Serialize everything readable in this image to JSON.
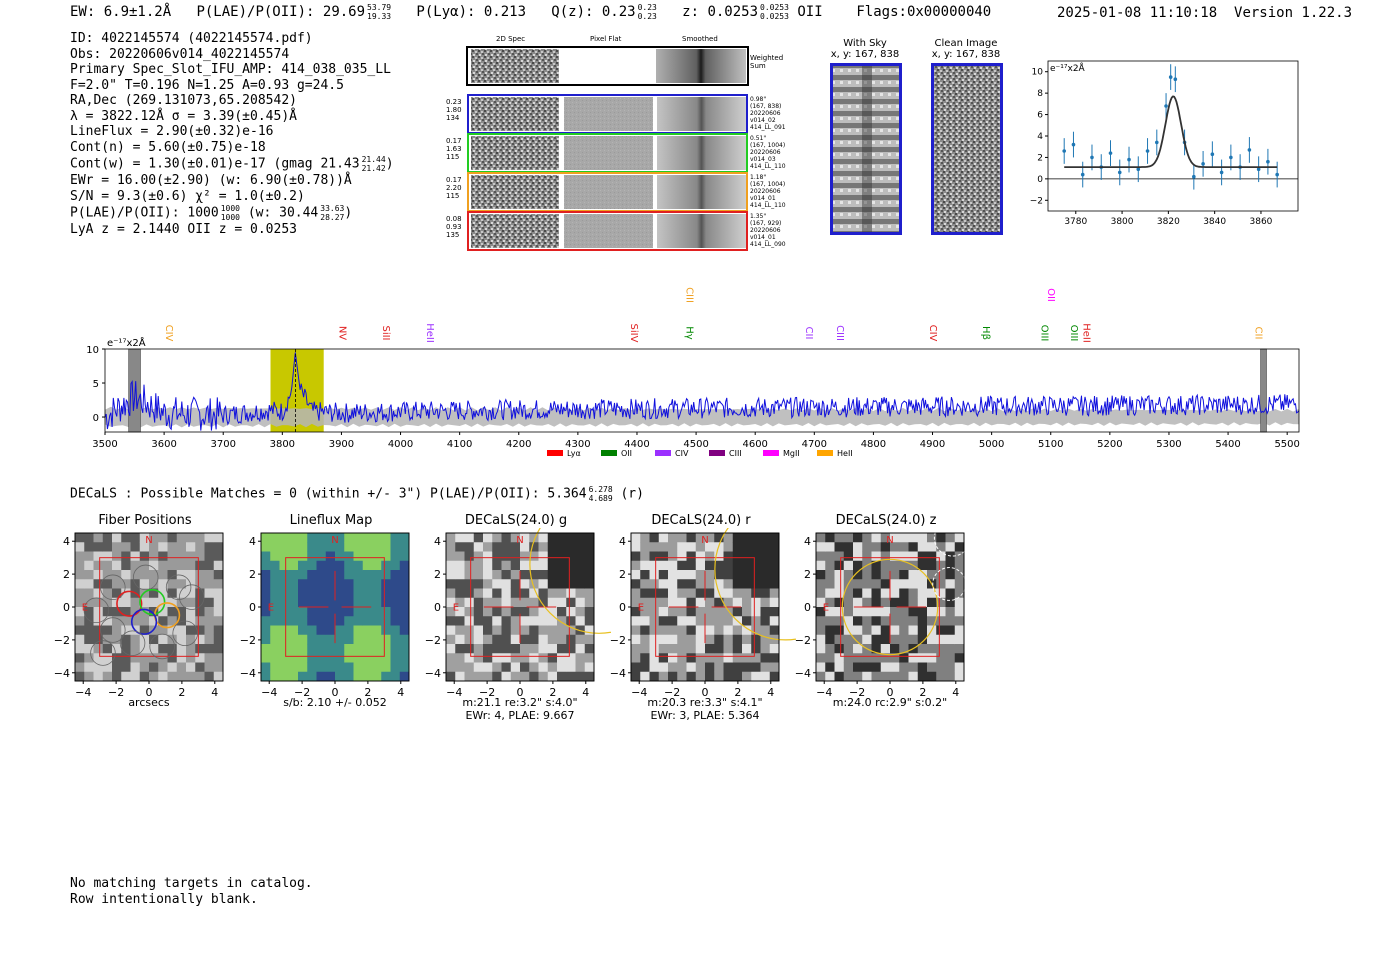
{
  "header": {
    "ew": "EW: 6.9±1.2Å",
    "plae_label": "P(LAE)/P(OII): 29.69",
    "plae_hi": "53.79",
    "plae_lo": "19.33",
    "plya": "P(Lyα): 0.213",
    "q_label": "Q(z): 0.23",
    "q_hi": "0.23",
    "q_lo": "0.23",
    "z_label": "z: 0.0253",
    "z_hi": "0.0253",
    "z_lo": "0.0253",
    "z_line": "OII",
    "flags": "Flags:0x00000040",
    "datetime": "2025-01-08 11:10:18",
    "version": "Version 1.22.3"
  },
  "info": {
    "l1": "ID: 4022145574 (4022145574.pdf)",
    "l2": "Obs: 20220606v014_4022145574",
    "l3": "Primary Spec_Slot_IFU_AMP: 414_038_035_LL",
    "l4": "F=2.0\"  T=0.196  N=1.25  A=0.93  g=24.5",
    "l5": "RA,Dec (269.131073,65.208542)",
    "l6": "λ = 3822.12Å  σ = 3.39(±0.45)Å",
    "l7": "LineFlux = 2.90(±0.32)e-16",
    "l8": "Cont(n) = 5.60(±0.75)e-18",
    "l9": "Cont(w) = 1.30(±0.01)e-17 (gmag 21.43",
    "l9_hi": "21.44",
    "l9_lo": "21.42",
    "l9_end": ")",
    "l10": "EWr = 16.00(±2.90) (w: 6.90(±0.78))Å",
    "l11": "S/N = 9.3(±0.6)  χ² = 1.0(±0.2)",
    "l12": "P(LAE)/P(OII): 1000",
    "l12_hi": "1000",
    "l12_lo": "1000",
    "l12_mid": "(w: 30.44",
    "l12_hi2": "33.63",
    "l12_lo2": "28.27",
    "l12_end": ")",
    "l13": "LyA z = 2.1440  OII z = 0.0253"
  },
  "cutouts": {
    "col_2d": "2D Spec",
    "col_flat": "Pixel Flat",
    "col_smooth": "Smoothed",
    "weighted": "Weighted",
    "weighted2": "Sum",
    "rows": [
      {
        "color": "#1f1fcc",
        "left": [
          "0.23",
          "1.80",
          "134"
        ],
        "right": [
          "0.98\"",
          "(167, 838)",
          "20220606",
          "v014_02",
          "414_LL_091"
        ]
      },
      {
        "color": "#22cc22",
        "left": [
          "0.17",
          "1.63",
          "115"
        ],
        "right": [
          "0.51\"",
          "(167, 1004)",
          "20220606",
          "v014_03",
          "414_LL_110"
        ]
      },
      {
        "color": "#f0a020",
        "left": [
          "0.17",
          "2.20",
          "115"
        ],
        "right": [
          "1.18\"",
          "(167, 1004)",
          "20220606",
          "v014_01",
          "414_LL_110"
        ]
      },
      {
        "color": "#e02020",
        "left": [
          "0.08",
          "0.93",
          "135"
        ],
        "right": [
          "1.35\"",
          "(167, 929)",
          "20220606",
          "v014_01",
          "414_LL_090"
        ]
      }
    ],
    "with_sky": "With Sky",
    "with_sky_xy": "x, y: 167, 838",
    "clean": "Clean Image",
    "clean_xy": "x, y: 167, 838"
  },
  "zoom_chart": {
    "unit": "e⁻¹⁷x2Å",
    "xticks": [
      "3780",
      "3800",
      "3820",
      "3840",
      "3860"
    ],
    "yticks": [
      "10",
      "8",
      "6",
      "4",
      "2",
      "0",
      "−2"
    ]
  },
  "spectrum": {
    "unit": "e⁻¹⁷x2Å",
    "xticks": [
      "3500",
      "3600",
      "3700",
      "3800",
      "3900",
      "4000",
      "4100",
      "4200",
      "4300",
      "4400",
      "4500",
      "4600",
      "4700",
      "4800",
      "4900",
      "5000",
      "5100",
      "5200",
      "5300",
      "5400",
      "5500"
    ],
    "yticks": [
      "10",
      "5",
      "0"
    ],
    "line_labels": [
      {
        "t": "CIV",
        "w": 3603,
        "c": "#f0a020",
        "row": 1
      },
      {
        "t": "NV",
        "w": 3897,
        "c": "#e02020",
        "row": 1
      },
      {
        "t": "SiII",
        "w": 3970,
        "c": "#e02020",
        "row": 1
      },
      {
        "t": "HeII",
        "w": 4045,
        "c": "#9b30ff",
        "row": 1
      },
      {
        "t": "SiIV",
        "w": 4390,
        "c": "#e02020",
        "row": 1
      },
      {
        "t": "CIII",
        "w": 4484,
        "c": "#f0a020",
        "row": 0
      },
      {
        "t": "Hγ",
        "w": 4484,
        "c": "#008800",
        "row": 1
      },
      {
        "t": "CII",
        "w": 4686,
        "c": "#9b30ff",
        "row": 1
      },
      {
        "t": "CIII",
        "w": 4738,
        "c": "#9b30ff",
        "row": 1
      },
      {
        "t": "CIV",
        "w": 4896,
        "c": "#e02020",
        "row": 1
      },
      {
        "t": "Hβ",
        "w": 4985,
        "c": "#008800",
        "row": 1
      },
      {
        "t": "OIII",
        "w": 5084,
        "c": "#008800",
        "row": 1
      },
      {
        "t": "OII",
        "w": 5095,
        "c": "#ff00ff",
        "row": 0
      },
      {
        "t": "OIII",
        "w": 5134,
        "c": "#008800",
        "row": 1
      },
      {
        "t": "HeII",
        "w": 5155,
        "c": "#e02020",
        "row": 1
      },
      {
        "t": "CII",
        "w": 5446,
        "c": "#f0a020",
        "row": 1
      }
    ],
    "legend": [
      {
        "label": "Lyα",
        "color": "#ff0000"
      },
      {
        "label": "OII",
        "color": "#008000"
      },
      {
        "label": "CIV",
        "color": "#9b30ff"
      },
      {
        "label": "CIII",
        "color": "#800080"
      },
      {
        "label": "MgII",
        "color": "#ff00ff"
      },
      {
        "label": "HeII",
        "color": "#ffa500"
      }
    ]
  },
  "decals": {
    "line": "DECaLS : Possible Matches = 0 (within +/- 3\")  P(LAE)/P(OII): 5.364",
    "hi": "6.278",
    "lo": "4.689",
    "tail": "(r)"
  },
  "panels": [
    {
      "title": "Fiber Positions",
      "cap1": "arcsecs",
      "cap2": ""
    },
    {
      "title": "Lineflux Map",
      "cap1": "s/b: 2.10 +/- 0.052",
      "cap2": ""
    },
    {
      "title": "DECaLS(24.0) g",
      "cap1": "m:21.1  re:3.2\"  s:4.0\"",
      "cap2": "EWr: 4, PLAE: 9.667"
    },
    {
      "title": "DECaLS(24.0) r",
      "cap1": "m:20.3  re:3.3\"  s:4.1\"",
      "cap2": "EWr: 3, PLAE: 5.364"
    },
    {
      "title": "DECaLS(24.0) z",
      "cap1": "m:24.0 rc:2.9\"  s:0.2\"",
      "cap2": ""
    }
  ],
  "panel_axes": {
    "xticks": [
      "−4",
      "−2",
      "0",
      "2",
      "4"
    ],
    "yticks": [
      "4",
      "2",
      "0",
      "−2",
      "−4"
    ],
    "north": "N",
    "east": "E"
  },
  "footer": {
    "l1": "No matching targets in catalog.",
    "l2": "Row intentionally blank."
  },
  "chart_data": [
    {
      "type": "line",
      "title": "",
      "xlabel": "",
      "ylabel": "e⁻¹⁷x2Å",
      "xlim": [
        3500,
        5520
      ],
      "ylim": [
        -2,
        10
      ],
      "highlight_band": [
        3780,
        3870
      ],
      "line_center": 3822.12,
      "masked_bands": [
        [
          3540,
          3560
        ],
        [
          5455,
          5465
        ]
      ],
      "series": [
        {
          "name": "",
          "x": [
            3500,
            3550,
            3600,
            3700,
            3780,
            3800,
            3815,
            3822,
            3830,
            3850,
            3900,
            4000,
            4200,
            4500,
            4800,
            5000,
            5200,
            5400,
            5520
          ],
          "y": [
            0,
            3.0,
            0.6,
            0.3,
            1.0,
            0.8,
            3.5,
            9.5,
            4.0,
            0.8,
            0.6,
            0.8,
            1.1,
            1.3,
            1.5,
            1.6,
            1.7,
            1.8,
            1.9
          ]
        }
      ]
    },
    {
      "type": "scatter",
      "title": "",
      "xlabel": "",
      "ylabel": "e⁻¹⁷x2Å",
      "xlim": [
        3768,
        3876
      ],
      "ylim": [
        -3,
        11
      ],
      "series": [
        {
          "name": "",
          "x": [
            3775,
            3779,
            3783,
            3787,
            3791,
            3795,
            3799,
            3803,
            3807,
            3811,
            3815,
            3819,
            3821,
            3823,
            3827,
            3831,
            3835,
            3839,
            3843,
            3847,
            3851,
            3855,
            3859,
            3863,
            3867
          ],
          "y": [
            2.6,
            3.2,
            0.4,
            2.0,
            1.1,
            2.4,
            0.6,
            1.8,
            0.9,
            2.6,
            3.4,
            6.8,
            9.5,
            9.3,
            3.4,
            0.2,
            1.4,
            2.3,
            0.6,
            2.0,
            1.1,
            2.7,
            0.9,
            1.6,
            0.4
          ],
          "yerr": 1.2
        }
      ],
      "fit": {
        "amplitude": 6.6,
        "center": 3822.12,
        "sigma": 3.39,
        "baseline": 1.1
      }
    }
  ]
}
